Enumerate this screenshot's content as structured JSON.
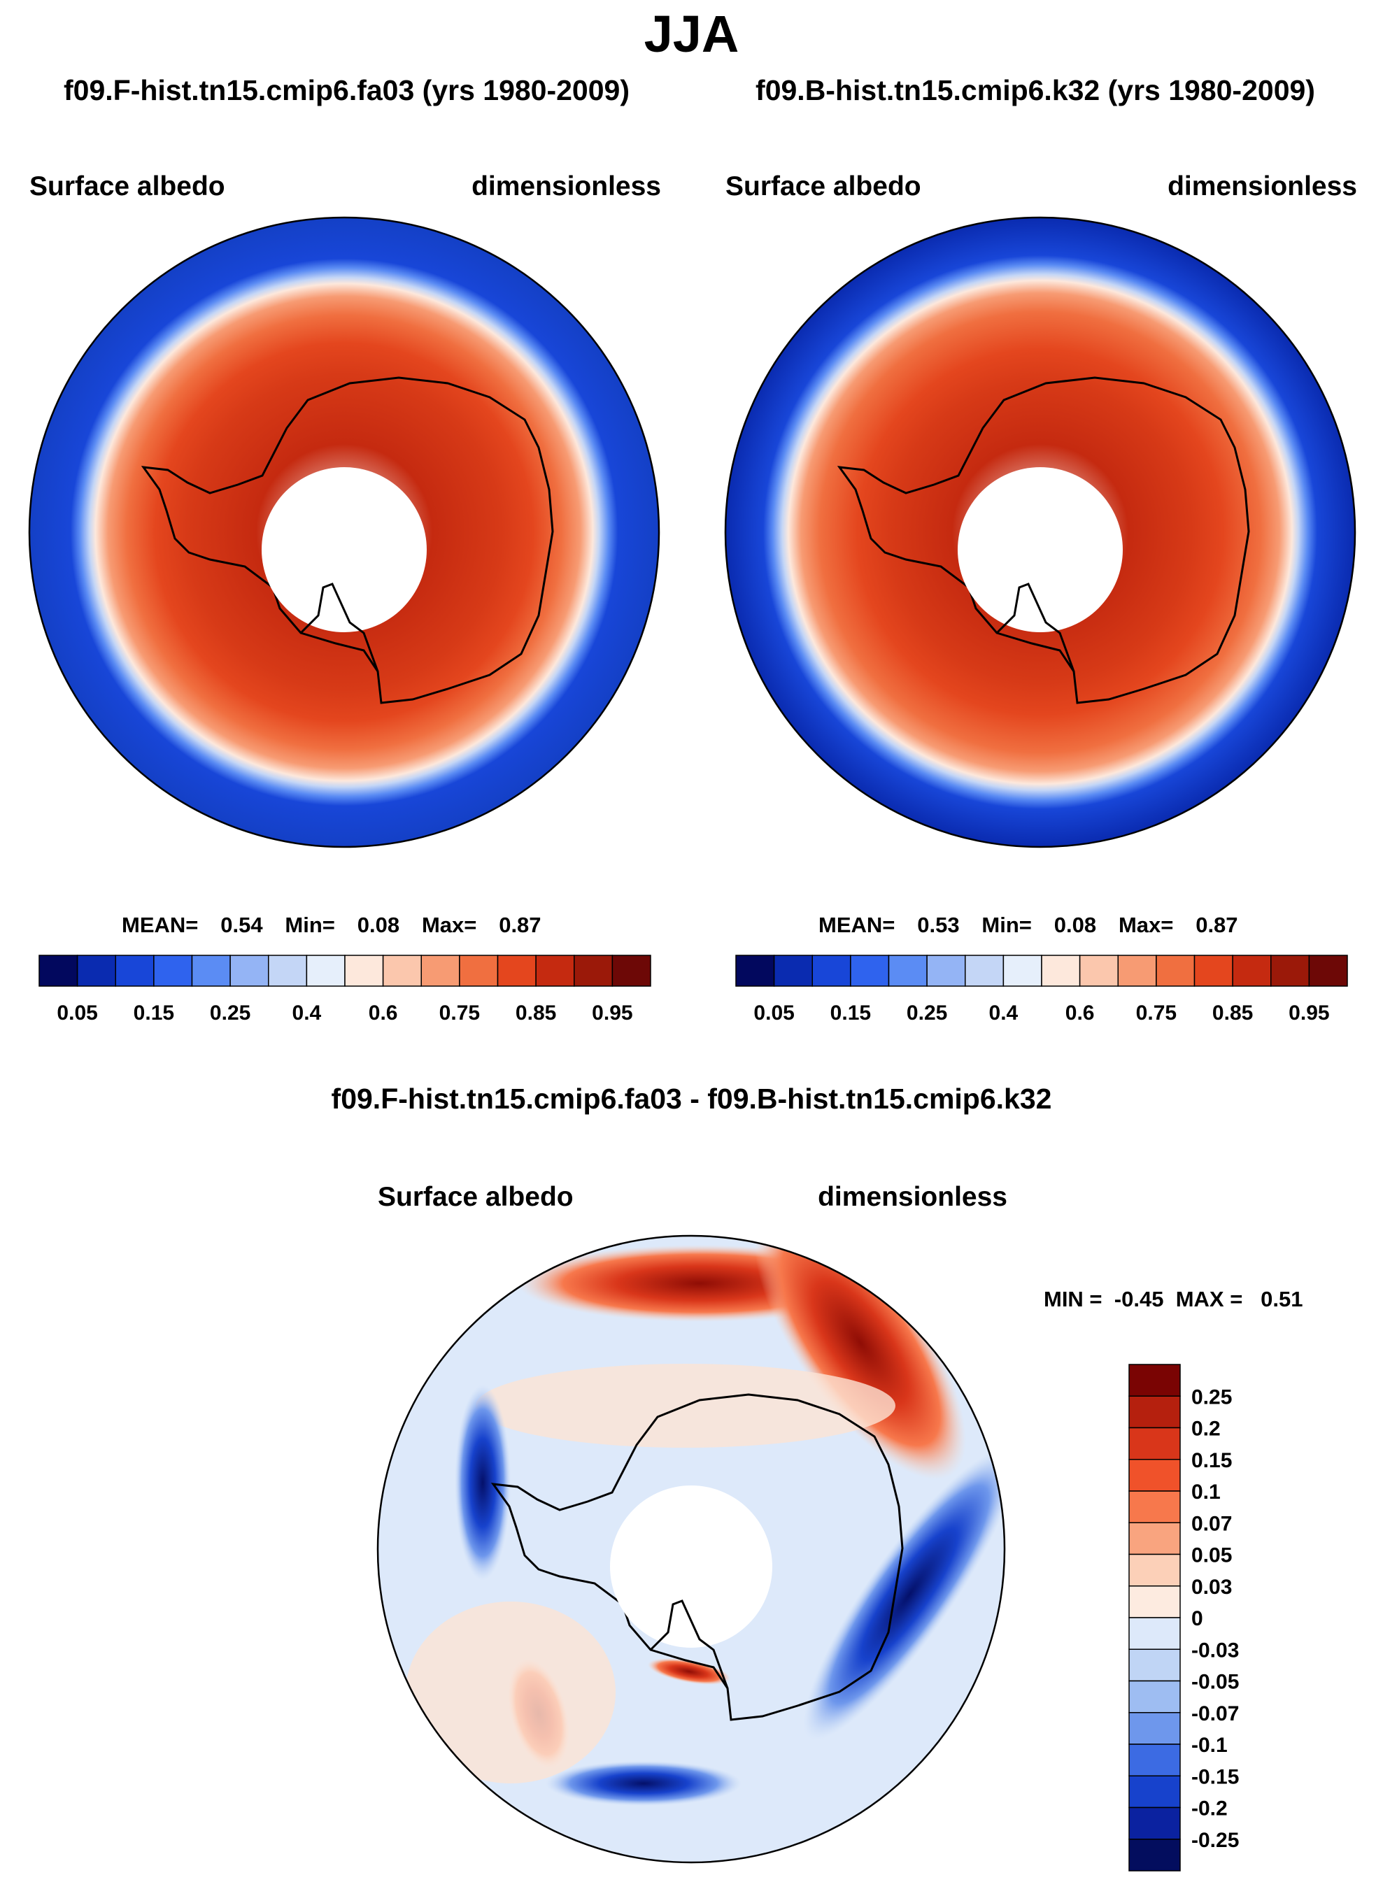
{
  "page": {
    "title": "JJA",
    "subtitle_left": "f09.F-hist.tn15.cmip6.fa03 (yrs 1980-2009)",
    "subtitle_right": "f09.B-hist.tn15.cmip6.k32 (yrs 1980-2009)",
    "diff_title": "f09.F-hist.tn15.cmip6.fa03 - f09.B-hist.tn15.cmip6.k32"
  },
  "chart_data": [
    {
      "type": "contour-map",
      "projection": "south-polar-stereographic",
      "variable": "Surface albedo",
      "units": "dimensionless",
      "case": "f09.F-hist.tn15.cmip6.fa03 (yrs 1980-2009)",
      "stats": {
        "mean": "0.54",
        "min": "0.08",
        "max": "0.87"
      },
      "stats_text": {
        "mean_label": "MEAN=",
        "min_label": "Min=",
        "max_label": "Max="
      },
      "levels": [
        0.05,
        0.1,
        0.15,
        0.2,
        0.25,
        0.3,
        0.4,
        0.5,
        0.6,
        0.7,
        0.75,
        0.8,
        0.85,
        0.9,
        0.95
      ],
      "tick_labels": [
        "0.05",
        "0.15",
        "0.25",
        "0.4",
        "0.6",
        "0.75",
        "0.85",
        "0.95"
      ],
      "colors": [
        "#02085e",
        "#0a2bb0",
        "#1846d8",
        "#2f63ee",
        "#5b8cf4",
        "#94b4f5",
        "#c4d6f6",
        "#e6effb",
        "#fde8dc",
        "#fbc7ad",
        "#f79b73",
        "#f06f40",
        "#e4461e",
        "#c52a10",
        "#9b1909",
        "#6d0806"
      ]
    },
    {
      "type": "contour-map",
      "projection": "south-polar-stereographic",
      "variable": "Surface albedo",
      "units": "dimensionless",
      "case": "f09.B-hist.tn15.cmip6.k32 (yrs 1980-2009)",
      "stats": {
        "mean": "0.53",
        "min": "0.08",
        "max": "0.87"
      },
      "stats_text": {
        "mean_label": "MEAN=",
        "min_label": "Min=",
        "max_label": "Max="
      },
      "levels": [
        0.05,
        0.1,
        0.15,
        0.2,
        0.25,
        0.3,
        0.4,
        0.5,
        0.6,
        0.7,
        0.75,
        0.8,
        0.85,
        0.9,
        0.95
      ],
      "tick_labels": [
        "0.05",
        "0.15",
        "0.25",
        "0.4",
        "0.6",
        "0.75",
        "0.85",
        "0.95"
      ],
      "colors": [
        "#02085e",
        "#0a2bb0",
        "#1846d8",
        "#2f63ee",
        "#5b8cf4",
        "#94b4f5",
        "#c4d6f6",
        "#e6effb",
        "#fde8dc",
        "#fbc7ad",
        "#f79b73",
        "#f06f40",
        "#e4461e",
        "#c52a10",
        "#9b1909",
        "#6d0806"
      ]
    },
    {
      "type": "contour-map",
      "projection": "south-polar-stereographic",
      "variable": "Surface albedo",
      "units": "dimensionless",
      "case": "f09.F-hist.tn15.cmip6.fa03 - f09.B-hist.tn15.cmip6.k32",
      "stats": {
        "min": "-0.45",
        "max": "0.51"
      },
      "stats_text": {
        "min_label": "MIN =",
        "max_label": "MAX ="
      },
      "levels": [
        -0.25,
        -0.2,
        -0.15,
        -0.1,
        -0.07,
        -0.05,
        -0.03,
        0,
        0.03,
        0.05,
        0.07,
        0.1,
        0.15,
        0.2,
        0.25
      ],
      "tick_labels": [
        "0.25",
        "0.2",
        "0.15",
        "0.1",
        "0.07",
        "0.05",
        "0.03",
        "0",
        "-0.03",
        "-0.05",
        "-0.07",
        "-0.1",
        "-0.15",
        "-0.2",
        "-0.25"
      ],
      "colors": [
        "#7a0403",
        "#b5200e",
        "#d9361a",
        "#f0522a",
        "#f7784c",
        "#f9a47f",
        "#fcd0b8",
        "#fdebe0",
        "#dde9fa",
        "#c0d5f5",
        "#9ebdf2",
        "#6e97ec",
        "#3c6be3",
        "#1742cc",
        "#0b22a0",
        "#030d5e"
      ]
    }
  ]
}
